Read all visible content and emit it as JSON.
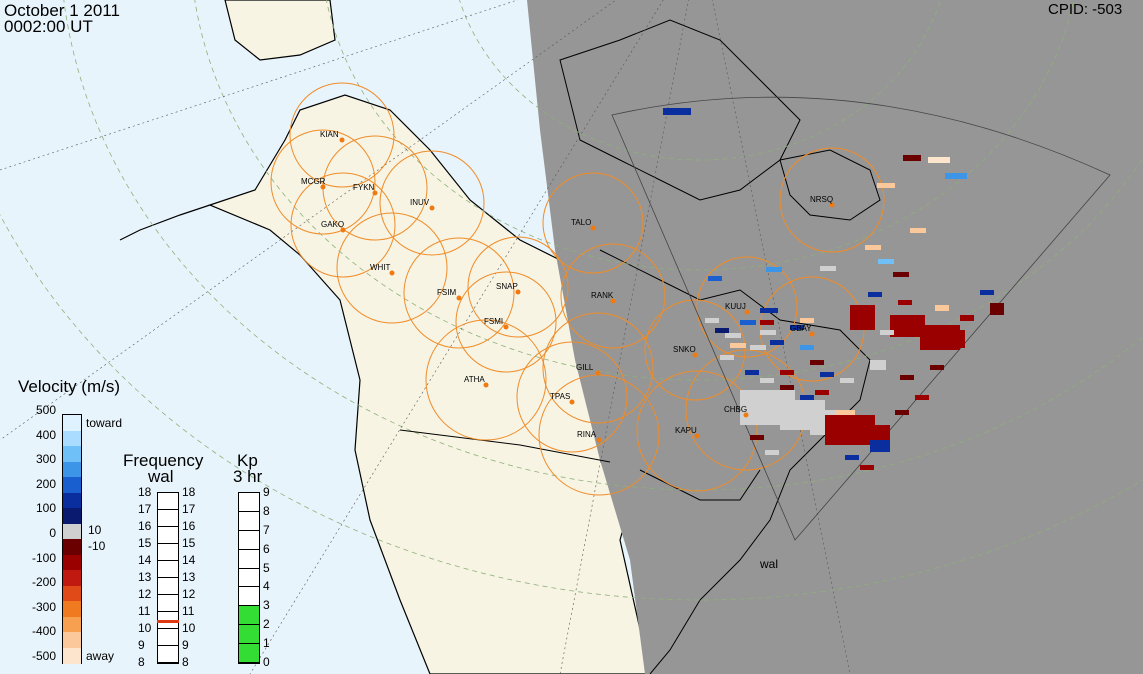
{
  "header": {
    "date": "October  1 2011",
    "time": "0002:00 UT",
    "cpid": "CPID:  -503"
  },
  "stations": [
    "KIAN",
    "MCGR",
    "FYKN",
    "INUV",
    "GAKO",
    "WHIT",
    "FSIM",
    "SNAP",
    "FSMI",
    "RANK",
    "ATHA",
    "GILL",
    "TPAS",
    "RINA",
    "KAPU",
    "CHBG",
    "SNKO",
    "KUUJ",
    "GBAY",
    "NRSQ",
    "TALO"
  ],
  "radar_label": "wal",
  "velocity_scale": {
    "title": "Velocity (m/s)",
    "ticks": [
      "500",
      "400",
      "300",
      "200",
      "100",
      "0",
      "-100",
      "-200",
      "-300",
      "-400",
      "-500"
    ],
    "toward_label": "toward",
    "away_label": "away",
    "threshold_pos": "10",
    "threshold_neg": "-10",
    "colors": [
      "#dff2ff",
      "#a9dcff",
      "#6ec0f6",
      "#3c95e6",
      "#1a5fcf",
      "#0a2e9e",
      "#0a1a6e",
      "#d0d0d0",
      "#6b0000",
      "#9b0000",
      "#c01a10",
      "#e04a18",
      "#f07a20",
      "#f6a050",
      "#fac89a",
      "#fde4cc"
    ]
  },
  "frequency": {
    "title": "Frequency",
    "subtitle": "wal",
    "ticks": [
      "18",
      "17",
      "16",
      "15",
      "14",
      "13",
      "12",
      "11",
      "10",
      "9",
      "8"
    ],
    "marker_mhz": 10.5,
    "marker_color": "#e03a14"
  },
  "kp": {
    "title": "Kp",
    "subtitle": "3 hr",
    "ticks": [
      "9",
      "8",
      "7",
      "6",
      "5",
      "4",
      "3",
      "2",
      "1",
      "0"
    ],
    "value": 3,
    "fill_color": "#33dd33"
  },
  "colors": {
    "ocean": "#e8f4fb",
    "land": "#f7f4e4",
    "night": "#969696",
    "fov": "#f08c28",
    "grid": "#8fb07a"
  }
}
